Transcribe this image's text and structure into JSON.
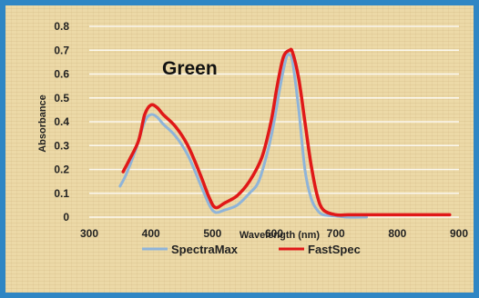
{
  "chart_data": {
    "type": "line",
    "annotation": "Green",
    "xlabel": "Wavelength (nm)",
    "ylabel": "Absorbance",
    "xlim": [
      300,
      900
    ],
    "ylim": [
      0,
      0.8
    ],
    "x_ticks": [
      300,
      400,
      500,
      600,
      700,
      800,
      900
    ],
    "x_tick_labels": [
      "300",
      "400",
      "500",
      "600",
      "700",
      "800",
      "900"
    ],
    "y_ticks": [
      0,
      0.1,
      0.2,
      0.3,
      0.4,
      0.5,
      0.6,
      0.7,
      0.8
    ],
    "y_tick_labels": [
      "0",
      "0.1",
      "0.2",
      "0.3",
      "0.4",
      "0.5",
      "0.6",
      "0.7",
      "0.8"
    ],
    "grid": "horizontal",
    "legend_position": "bottom",
    "series": [
      {
        "name": "SpectraMax",
        "color": "#8fb4d9",
        "x": [
          350,
          360,
          375,
          390,
          400,
          410,
          420,
          440,
          460,
          480,
          495,
          505,
          520,
          540,
          560,
          575,
          590,
          600,
          610,
          620,
          625,
          630,
          640,
          650,
          660,
          670,
          680,
          700,
          720,
          750
        ],
        "y": [
          0.13,
          0.18,
          0.28,
          0.4,
          0.43,
          0.42,
          0.39,
          0.34,
          0.26,
          0.14,
          0.05,
          0.02,
          0.03,
          0.05,
          0.1,
          0.15,
          0.28,
          0.4,
          0.55,
          0.67,
          0.68,
          0.65,
          0.45,
          0.2,
          0.08,
          0.03,
          0.01,
          0.005,
          0.0,
          0.0
        ]
      },
      {
        "name": "FastSpec",
        "color": "#e01818",
        "x": [
          355,
          365,
          380,
          390,
          400,
          410,
          420,
          440,
          460,
          480,
          495,
          505,
          520,
          540,
          560,
          580,
          595,
          605,
          615,
          625,
          630,
          640,
          650,
          660,
          670,
          680,
          700,
          720,
          750,
          800,
          850,
          885
        ],
        "y": [
          0.19,
          0.24,
          0.32,
          0.43,
          0.47,
          0.46,
          0.43,
          0.38,
          0.3,
          0.18,
          0.08,
          0.04,
          0.06,
          0.09,
          0.15,
          0.25,
          0.4,
          0.55,
          0.67,
          0.7,
          0.69,
          0.58,
          0.4,
          0.22,
          0.09,
          0.03,
          0.01,
          0.01,
          0.01,
          0.01,
          0.01,
          0.01
        ]
      }
    ]
  }
}
